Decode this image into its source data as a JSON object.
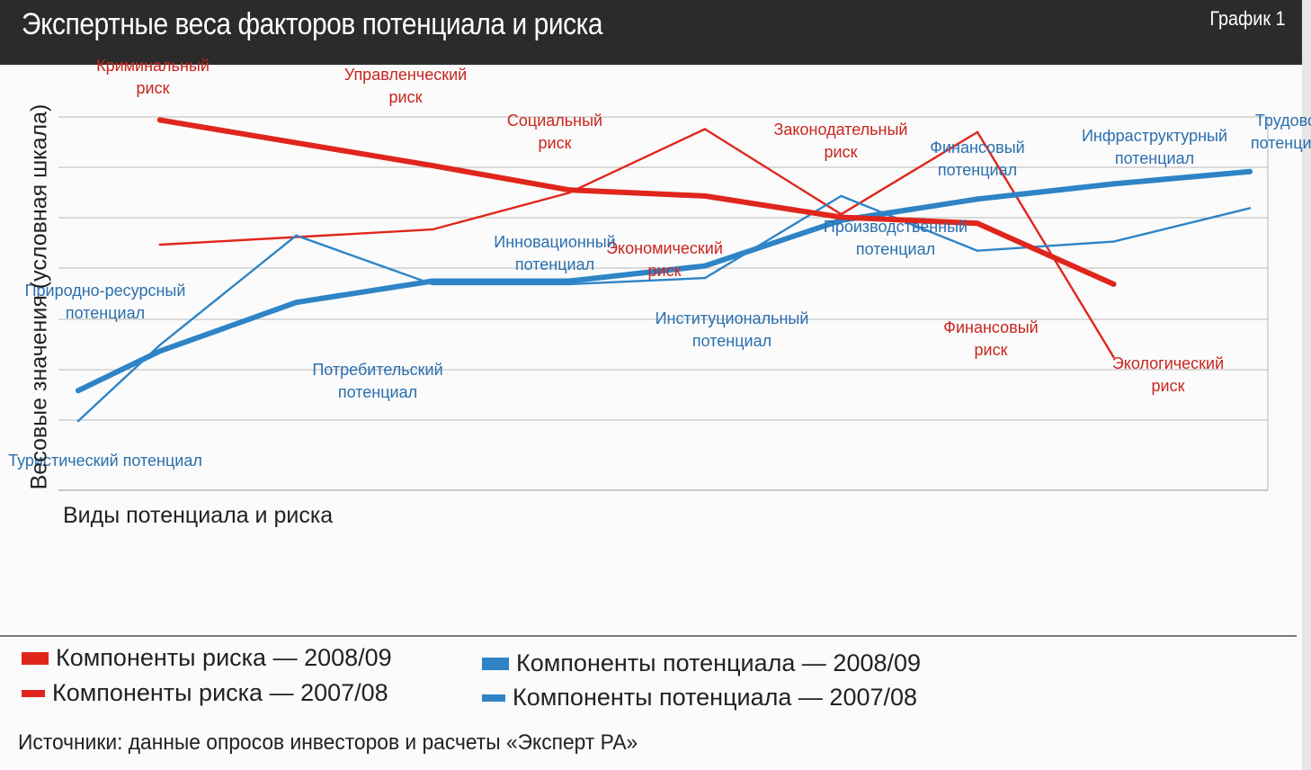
{
  "header": {
    "title": "Экспертные веса факторов потенциала и риска",
    "chart_number": "График 1"
  },
  "colors": {
    "risk": "#e0261c",
    "potential": "#2e84c6",
    "header_bg": "#2b2b2b"
  },
  "chart_data": {
    "type": "line",
    "title": "Экспертные веса факторов потенциала и риска",
    "xlabel": "Виды потенциала и риска",
    "ylabel": "Весовые значения (условная шкала)",
    "ylim": [
      0,
      10
    ],
    "grid": true,
    "x_ticks_labeled": false,
    "y_ticks_labeled": false,
    "series": [
      {
        "name": "Компоненты риска — 2008/09",
        "color": "#e0261c",
        "style": "thick",
        "points": [
          {
            "x": 1,
            "y": 9.9
          },
          {
            "x": 3,
            "y": 8.4
          },
          {
            "x": 4,
            "y": 7.6
          },
          {
            "x": 5,
            "y": 7.4
          },
          {
            "x": 6,
            "y": 6.7
          },
          {
            "x": 7,
            "y": 6.5
          },
          {
            "x": 8,
            "y": 4.5
          }
        ]
      },
      {
        "name": "Компоненты риска — 2007/08",
        "color": "#e0261c",
        "style": "thin",
        "points": [
          {
            "x": 1,
            "y": 5.8
          },
          {
            "x": 3,
            "y": 6.3
          },
          {
            "x": 4,
            "y": 7.5
          },
          {
            "x": 5,
            "y": 9.6
          },
          {
            "x": 6,
            "y": 6.8
          },
          {
            "x": 7,
            "y": 9.5
          },
          {
            "x": 8,
            "y": 2.1
          }
        ]
      },
      {
        "name": "Компоненты потенциала — 2008/09",
        "color": "#2e84c6",
        "style": "thick",
        "points": [
          {
            "x": 0.4,
            "y": 1.0
          },
          {
            "x": 1,
            "y": 2.3
          },
          {
            "x": 2,
            "y": 3.9
          },
          {
            "x": 3,
            "y": 4.6
          },
          {
            "x": 4,
            "y": 4.6
          },
          {
            "x": 5,
            "y": 5.1
          },
          {
            "x": 6,
            "y": 6.6
          },
          {
            "x": 7,
            "y": 7.3
          },
          {
            "x": 8,
            "y": 7.8
          },
          {
            "x": 9,
            "y": 8.2
          }
        ]
      },
      {
        "name": "Компоненты потенциала — 2007/08",
        "color": "#2e84c6",
        "style": "thin",
        "points": [
          {
            "x": 0.4,
            "y": 0.0
          },
          {
            "x": 1,
            "y": 2.5
          },
          {
            "x": 2,
            "y": 6.1
          },
          {
            "x": 3,
            "y": 4.5
          },
          {
            "x": 4,
            "y": 4.5
          },
          {
            "x": 5,
            "y": 4.7
          },
          {
            "x": 6,
            "y": 7.4
          },
          {
            "x": 7,
            "y": 5.6
          },
          {
            "x": 8,
            "y": 5.9
          },
          {
            "x": 9,
            "y": 7.0
          }
        ]
      }
    ],
    "annotations": [
      {
        "text": [
          "Криминальный",
          "риск"
        ],
        "series": "risk",
        "x": 0.95,
        "y": 11.3
      },
      {
        "text": [
          "Управленческий",
          "риск"
        ],
        "series": "risk",
        "x": 2.8,
        "y": 11.0
      },
      {
        "text": [
          "Социальный",
          "риск"
        ],
        "series": "risk",
        "x": 3.9,
        "y": 9.5
      },
      {
        "text": [
          "Экономический",
          "риск"
        ],
        "series": "risk",
        "x": 4.7,
        "y": 5.3
      },
      {
        "text": [
          "Законодательный",
          "риск"
        ],
        "series": "risk",
        "x": 6.0,
        "y": 9.2
      },
      {
        "text": [
          "Финансовый",
          "риск"
        ],
        "series": "risk",
        "x": 7.1,
        "y": 2.7
      },
      {
        "text": [
          "Экологический",
          "риск"
        ],
        "series": "risk",
        "x": 8.4,
        "y": 1.5
      },
      {
        "text": [
          "Природно-ресурсный",
          "потенциал"
        ],
        "series": "potential",
        "x": 0.6,
        "y": 3.9
      },
      {
        "text": [
          "Туристический потенциал"
        ],
        "series": "potential",
        "x": 0.6,
        "y": -1.7
      },
      {
        "text": [
          "Потребительский",
          "потенциал"
        ],
        "series": "potential",
        "x": 2.6,
        "y": 1.3
      },
      {
        "text": [
          "Инновационный",
          "потенциал"
        ],
        "series": "potential",
        "x": 3.9,
        "y": 5.5
      },
      {
        "text": [
          "Институциональный",
          "потенциал"
        ],
        "series": "potential",
        "x": 5.2,
        "y": 3.0
      },
      {
        "text": [
          "Производственный",
          "потенциал"
        ],
        "series": "potential",
        "x": 6.4,
        "y": 6.0
      },
      {
        "text": [
          "Финансовый",
          "потенциал"
        ],
        "series": "potential",
        "x": 7.0,
        "y": 8.6
      },
      {
        "text": [
          "Инфраструктурный",
          "потенциал"
        ],
        "series": "potential",
        "x": 8.3,
        "y": 9.0
      },
      {
        "text": [
          "Трудовой",
          "потенциал"
        ],
        "series": "potential",
        "x": 9.3,
        "y": 9.5
      }
    ]
  },
  "legend": {
    "items": [
      {
        "label": "Компоненты риска — 2008/09",
        "color": "#e0261c",
        "style": "thick"
      },
      {
        "label": "Компоненты риска — 2007/08",
        "color": "#e0261c",
        "style": "thin"
      },
      {
        "label": "Компоненты потенциала — 2008/09",
        "color": "#2e84c6",
        "style": "thick"
      },
      {
        "label": "Компоненты потенциала — 2007/08",
        "color": "#2e84c6",
        "style": "thin"
      }
    ]
  },
  "source": "Источники: данные опросов инвесторов и расчеты «Эксперт РА»"
}
